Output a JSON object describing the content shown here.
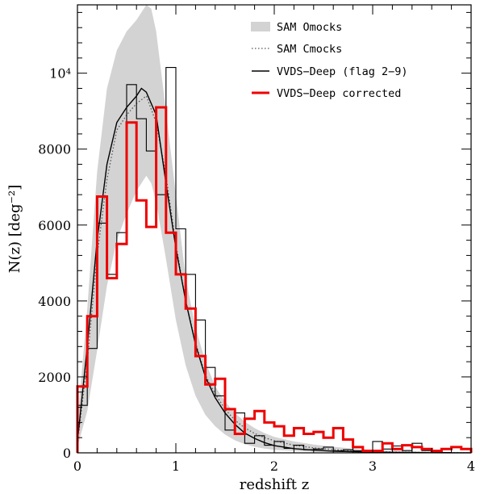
{
  "chart_data": {
    "type": "line",
    "title": "",
    "xlabel": "redshift z",
    "ylabel": "N(z)  [deg⁻²]",
    "xlim": [
      0,
      4
    ],
    "ylim": [
      0,
      11800
    ],
    "x_ticks": [
      {
        "value": 0,
        "label": "0"
      },
      {
        "value": 1,
        "label": "1"
      },
      {
        "value": 2,
        "label": "2"
      },
      {
        "value": 3,
        "label": "3"
      },
      {
        "value": 4,
        "label": "4"
      }
    ],
    "y_ticks": [
      {
        "value": 0,
        "label": "0"
      },
      {
        "value": 2000,
        "label": "2000"
      },
      {
        "value": 4000,
        "label": "4000"
      },
      {
        "value": 6000,
        "label": "6000"
      },
      {
        "value": 8000,
        "label": "8000"
      },
      {
        "value": 10000,
        "label": "10⁴"
      }
    ],
    "legend": {
      "position": "top-right",
      "entries": [
        {
          "key": "band",
          "label": "SAM Omocks"
        },
        {
          "key": "cmocks",
          "label": "SAM Cmocks"
        },
        {
          "key": "vvds",
          "label": "VVDS−Deep (flag 2−9)"
        },
        {
          "key": "corrected",
          "label": "VVDS−Deep corrected"
        }
      ]
    },
    "colors": {
      "band": "#d3d3d3",
      "cmocks": "#555555",
      "vvds": "#000000",
      "corrected": "#ee0000"
    },
    "band": {
      "name": "SAM Omocks",
      "x": [
        0.0,
        0.1,
        0.2,
        0.3,
        0.4,
        0.5,
        0.6,
        0.7,
        0.75,
        0.8,
        0.9,
        1.0,
        1.1,
        1.2,
        1.3,
        1.4,
        1.5,
        1.6,
        1.7,
        1.8,
        1.9,
        2.0,
        2.2,
        2.4,
        2.6,
        2.8,
        3.0,
        3.2,
        3.4,
        3.6,
        3.8,
        4.0
      ],
      "upper": [
        800,
        3800,
        7400,
        9600,
        10600,
        11100,
        11400,
        11800,
        11700,
        11100,
        9000,
        6800,
        4600,
        3300,
        2400,
        1750,
        1350,
        1050,
        820,
        650,
        520,
        420,
        300,
        220,
        160,
        110,
        80,
        55,
        40,
        25,
        15,
        8
      ],
      "lower": [
        150,
        1100,
        2700,
        4400,
        5600,
        6300,
        6900,
        7300,
        7100,
        6600,
        5100,
        3500,
        2300,
        1500,
        1000,
        700,
        480,
        330,
        230,
        160,
        110,
        80,
        50,
        30,
        20,
        12,
        8,
        5,
        3,
        2,
        1,
        0
      ]
    },
    "cmocks": {
      "name": "SAM Cmocks",
      "x": [
        0.0,
        0.1,
        0.2,
        0.3,
        0.4,
        0.5,
        0.6,
        0.7,
        0.8,
        0.9,
        1.0,
        1.1,
        1.2,
        1.3,
        1.4,
        1.5,
        1.6,
        1.7,
        1.8,
        1.9,
        2.0,
        2.2,
        2.4,
        2.6,
        2.8,
        3.0,
        3.2,
        3.4,
        3.6,
        3.8,
        4.0
      ],
      "y": [
        250,
        2400,
        5200,
        7200,
        8500,
        8900,
        9200,
        9400,
        8700,
        7300,
        5500,
        4000,
        2900,
        2050,
        1550,
        1150,
        860,
        660,
        510,
        400,
        320,
        200,
        130,
        85,
        55,
        35,
        22,
        14,
        8,
        5,
        3
      ]
    },
    "vvds_smooth": {
      "name": "VVDS−Deep (flag 2−9) smooth",
      "x": [
        0.0,
        0.1,
        0.2,
        0.3,
        0.4,
        0.5,
        0.6,
        0.65,
        0.7,
        0.8,
        0.9,
        1.0,
        1.1,
        1.2,
        1.3,
        1.4,
        1.5,
        1.6,
        1.7,
        1.8,
        1.9,
        2.0,
        2.2,
        2.4,
        2.6,
        2.8,
        3.0,
        3.2,
        3.4,
        3.6,
        3.8,
        4.0
      ],
      "y": [
        300,
        2800,
        5600,
        7600,
        8700,
        9100,
        9400,
        9600,
        9500,
        8900,
        7100,
        5400,
        4000,
        2850,
        2000,
        1450,
        1050,
        750,
        520,
        380,
        270,
        190,
        110,
        70,
        45,
        30,
        20,
        13,
        8,
        5,
        3,
        2
      ]
    },
    "vvds_hist": {
      "name": "VVDS−Deep (flag 2−9)",
      "bin_width": 0.1,
      "bin_starts": [
        0.0,
        0.1,
        0.2,
        0.3,
        0.4,
        0.5,
        0.6,
        0.7,
        0.8,
        0.9,
        1.0,
        1.1,
        1.2,
        1.3,
        1.4,
        1.5,
        1.6,
        1.7,
        1.8,
        1.9,
        2.0,
        2.1,
        2.2,
        2.3,
        2.4,
        2.5,
        2.6,
        2.7,
        2.8,
        2.9,
        3.0,
        3.1,
        3.2,
        3.3,
        3.4,
        3.5,
        3.6,
        3.7,
        3.8,
        3.9
      ],
      "values": [
        1250,
        2750,
        6050,
        4700,
        5800,
        9700,
        8800,
        7950,
        6800,
        10150,
        5900,
        4700,
        3500,
        2250,
        1500,
        600,
        1050,
        250,
        450,
        200,
        300,
        120,
        200,
        80,
        100,
        150,
        50,
        80,
        50,
        40,
        300,
        100,
        180,
        60,
        250,
        60,
        20,
        10,
        0,
        0
      ]
    },
    "corrected_hist": {
      "name": "VVDS−Deep corrected",
      "bin_width": 0.1,
      "bin_starts": [
        0.0,
        0.1,
        0.2,
        0.3,
        0.4,
        0.5,
        0.6,
        0.7,
        0.8,
        0.9,
        1.0,
        1.1,
        1.2,
        1.3,
        1.4,
        1.5,
        1.6,
        1.7,
        1.8,
        1.9,
        2.0,
        2.1,
        2.2,
        2.3,
        2.4,
        2.5,
        2.6,
        2.7,
        2.8,
        2.9,
        3.0,
        3.1,
        3.2,
        3.3,
        3.4,
        3.5,
        3.6,
        3.7,
        3.8,
        3.9
      ],
      "values": [
        1750,
        3600,
        6750,
        4600,
        5500,
        8700,
        6650,
        5950,
        9100,
        5800,
        4700,
        3800,
        2550,
        1800,
        1950,
        1150,
        500,
        900,
        1100,
        800,
        700,
        450,
        650,
        500,
        550,
        400,
        650,
        350,
        150,
        50,
        50,
        250,
        100,
        200,
        150,
        100,
        50,
        100,
        150,
        100
      ]
    }
  }
}
